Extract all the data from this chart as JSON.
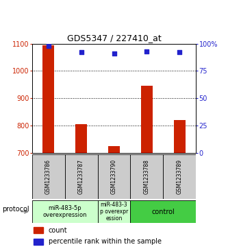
{
  "title": "GDS5347 / 227410_at",
  "samples": [
    "GSM1233786",
    "GSM1233787",
    "GSM1233790",
    "GSM1233788",
    "GSM1233789"
  ],
  "counts": [
    1095,
    805,
    725,
    945,
    820
  ],
  "percentile_ranks": [
    98,
    92,
    91,
    93,
    92
  ],
  "ylim_left": [
    700,
    1100
  ],
  "ylim_right": [
    0,
    100
  ],
  "yticks_left": [
    700,
    800,
    900,
    1000,
    1100
  ],
  "yticks_right": [
    0,
    25,
    50,
    75,
    100
  ],
  "ytick_labels_right": [
    "0",
    "25",
    "50",
    "75",
    "100%"
  ],
  "bar_color": "#cc2200",
  "scatter_color": "#2222cc",
  "grid_lines": [
    800,
    900,
    1000
  ],
  "proto_colors": [
    "#ccffcc",
    "#ccffcc",
    "#44cc44"
  ],
  "proto_labels": [
    "miR-483-5p\noverexpression",
    "miR-483-3\np overexpr\nession",
    "control"
  ],
  "proto_fontsizes": [
    6,
    5.5,
    7
  ],
  "protocol_label": "protocol",
  "legend_count_label": "count",
  "legend_pct_label": "percentile rank within the sample",
  "bg_color": "#ffffff",
  "sample_box_color": "#cccccc",
  "bar_width": 0.35,
  "title_fontsize": 9,
  "axis_fontsize": 7,
  "sample_fontsize": 5.5,
  "legend_fontsize": 7
}
